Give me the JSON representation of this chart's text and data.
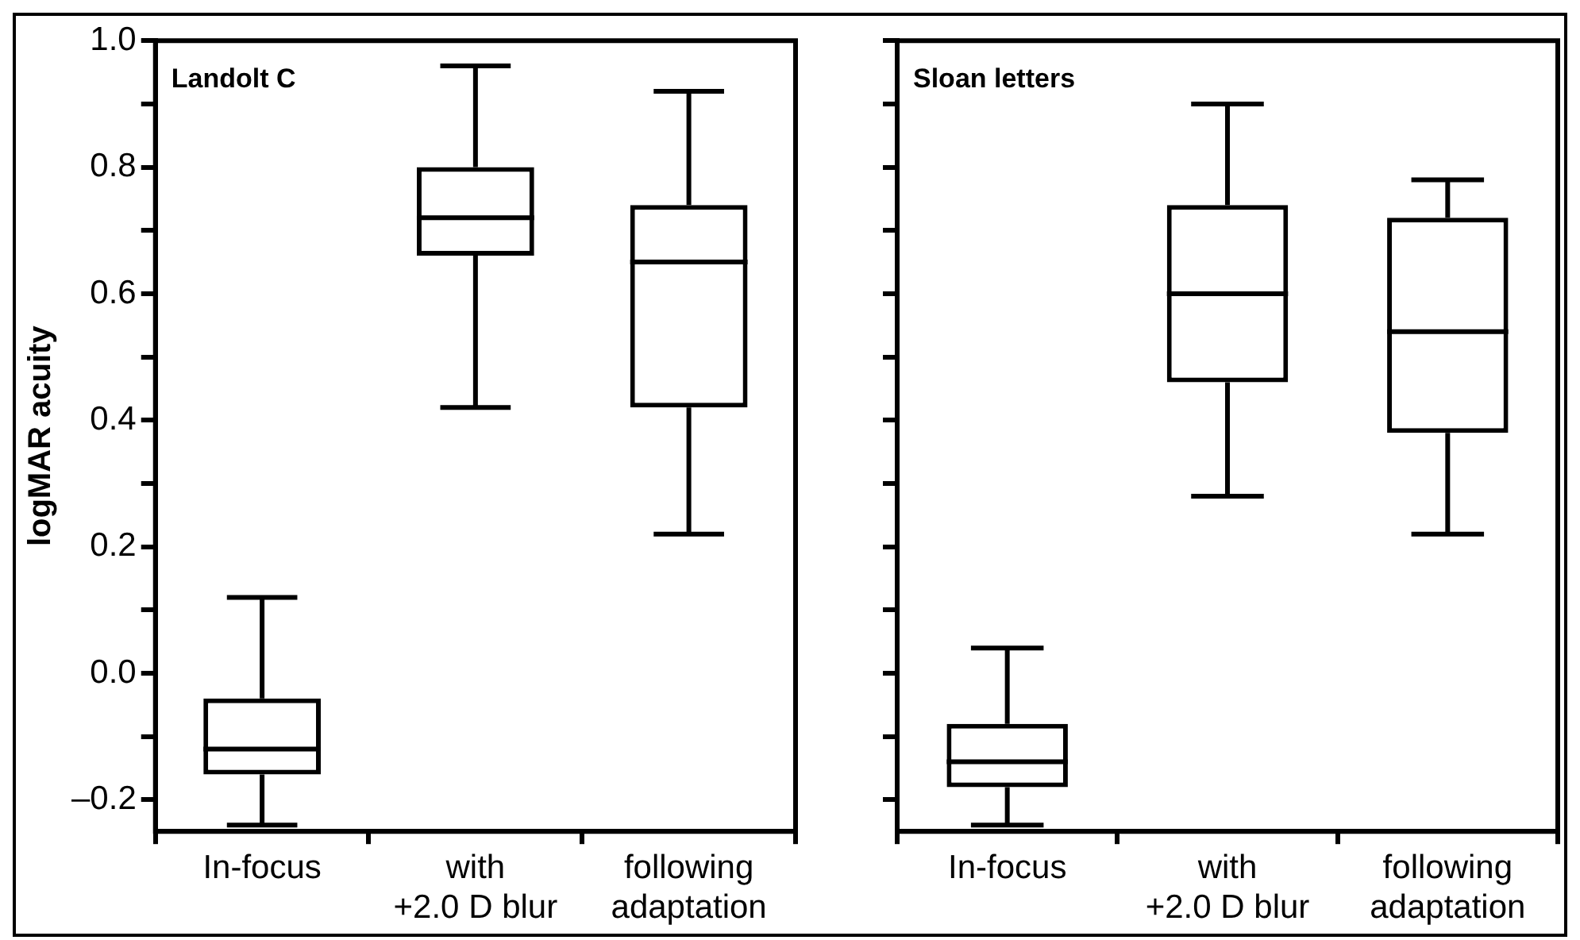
{
  "chart_data": [
    {
      "type": "box",
      "title": "Landolt C",
      "ylabel": "logMAR acuity",
      "categories": [
        "In-focus",
        "with +2.0 D blur",
        "following adaptation"
      ],
      "boxes": [
        {
          "low": -0.24,
          "q1": -0.16,
          "median": -0.12,
          "q3": -0.04,
          "high": 0.12
        },
        {
          "low": 0.42,
          "q1": 0.66,
          "median": 0.72,
          "q3": 0.8,
          "high": 0.96
        },
        {
          "low": 0.22,
          "q1": 0.42,
          "median": 0.65,
          "q3": 0.74,
          "high": 0.92
        }
      ],
      "ylim": [
        -0.25,
        1.0
      ],
      "yticks": [
        {
          "value": -0.2,
          "label": "–0.2"
        },
        {
          "value": -0.1,
          "label": null
        },
        {
          "value": 0,
          "label": "0.0"
        },
        {
          "value": 0.1,
          "label": null
        },
        0.2,
        {
          "value": 0.3,
          "label": null
        },
        0.4,
        {
          "value": 0.5,
          "label": null
        },
        0.6,
        {
          "value": 0.7,
          "label": null
        },
        0.8,
        {
          "value": 0.9,
          "label": null
        },
        {
          "value": 1.0,
          "label": "1.0"
        }
      ]
    },
    {
      "type": "box",
      "title": "Sloan letters",
      "categories": [
        "In-focus",
        "with +2.0 D blur",
        "following adaptation"
      ],
      "boxes": [
        {
          "low": -0.24,
          "q1": -0.18,
          "median": -0.14,
          "q3": -0.08,
          "high": 0.04
        },
        {
          "low": 0.28,
          "q1": 0.46,
          "median": 0.6,
          "q3": 0.74,
          "high": 0.9
        },
        {
          "low": 0.22,
          "q1": 0.38,
          "median": 0.54,
          "q3": 0.72,
          "high": 0.78
        }
      ],
      "ylim": [
        -0.25,
        1.0
      ],
      "yticks": [
        {
          "value": -0.2,
          "label": null
        },
        {
          "value": -0.1,
          "label": null
        },
        {
          "value": 0,
          "label": null
        },
        {
          "value": 0.1,
          "label": null
        },
        {
          "value": 0.2,
          "label": null
        },
        {
          "value": 0.3,
          "label": null
        },
        {
          "value": 0.4,
          "label": null
        },
        {
          "value": 0.5,
          "label": null
        },
        {
          "value": 0.6,
          "label": null
        },
        {
          "value": 0.7,
          "label": null
        },
        {
          "value": 0.8,
          "label": null
        },
        {
          "value": 0.9,
          "label": null
        },
        {
          "value": 1.0,
          "label": null
        }
      ],
      "tick_labels": "x"
    }
  ]
}
